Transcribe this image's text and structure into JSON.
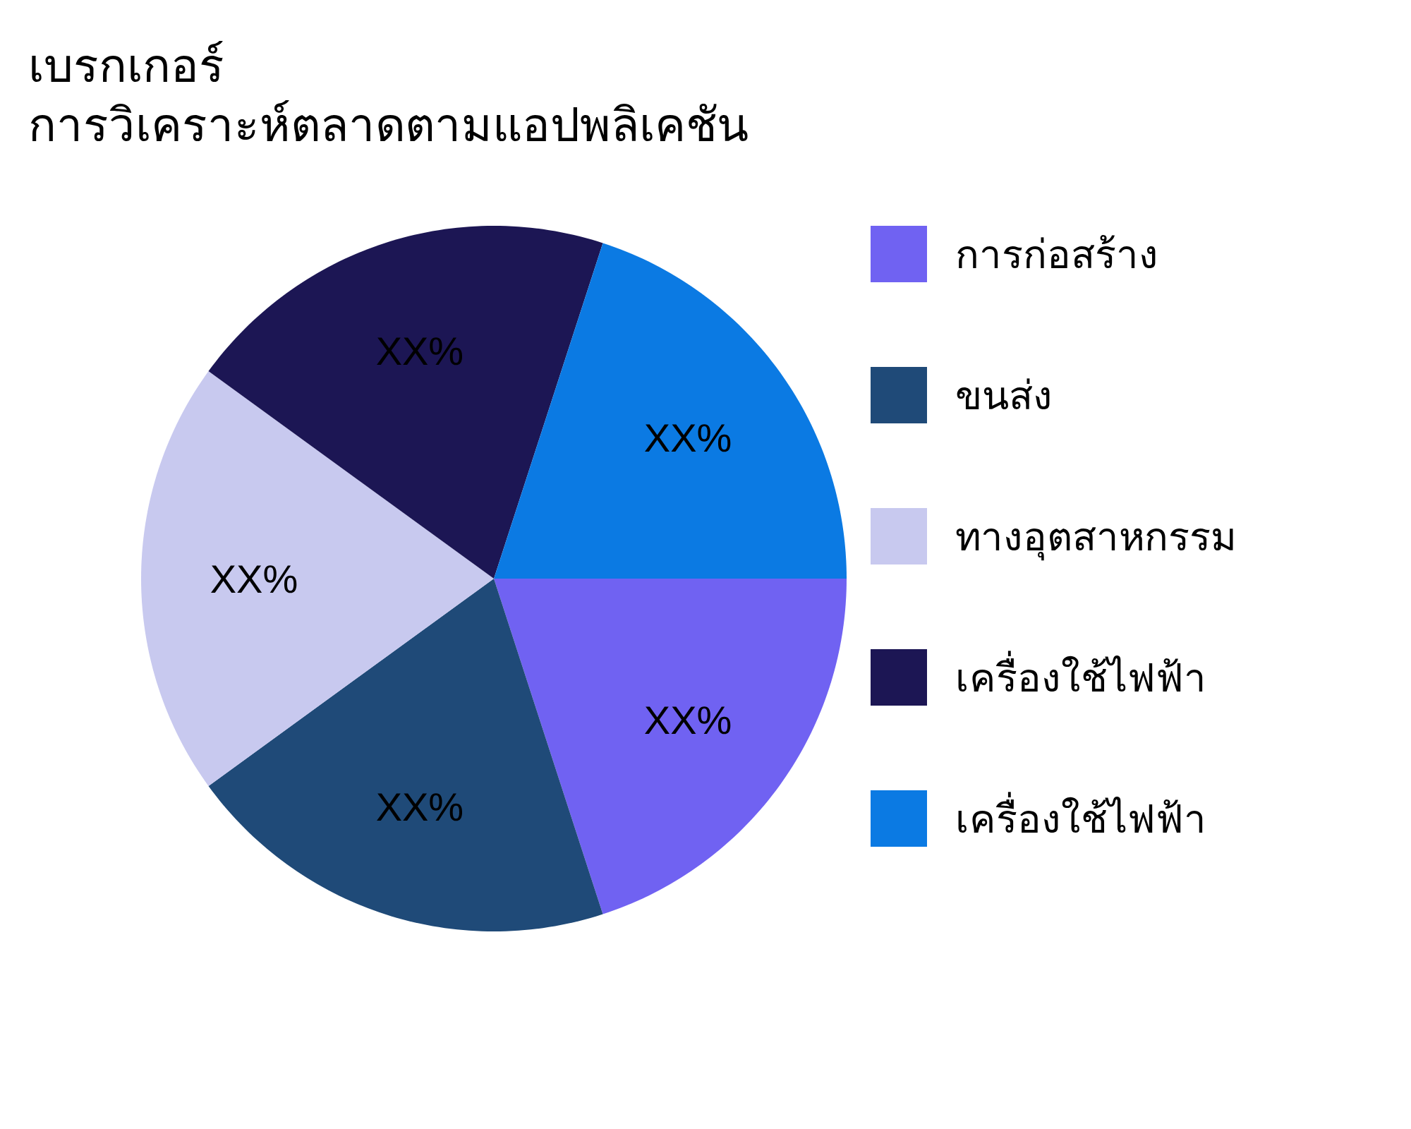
{
  "chart_data": {
    "type": "pie",
    "title": "เบรกเกอร์",
    "subtitle": "การวิเคราะห์ตลาดตามแอปพลิเคชัน",
    "categories": [
      "การก่อสร้าง",
      "ขนส่ง",
      "ทางอุตสาหกรรม",
      "เครื่องใช้ไฟฟ้า",
      "เครื่องใช้ไฟฟ้า"
    ],
    "values": [
      20,
      20,
      20,
      20,
      20
    ],
    "colors": [
      "#7062f2",
      "#1f4a78",
      "#c8c9ef",
      "#1c1654",
      "#0b7ae3"
    ],
    "value_labels": [
      "XX%",
      "XX%",
      "XX%",
      "XX%",
      "XX%"
    ],
    "legend": "right"
  }
}
